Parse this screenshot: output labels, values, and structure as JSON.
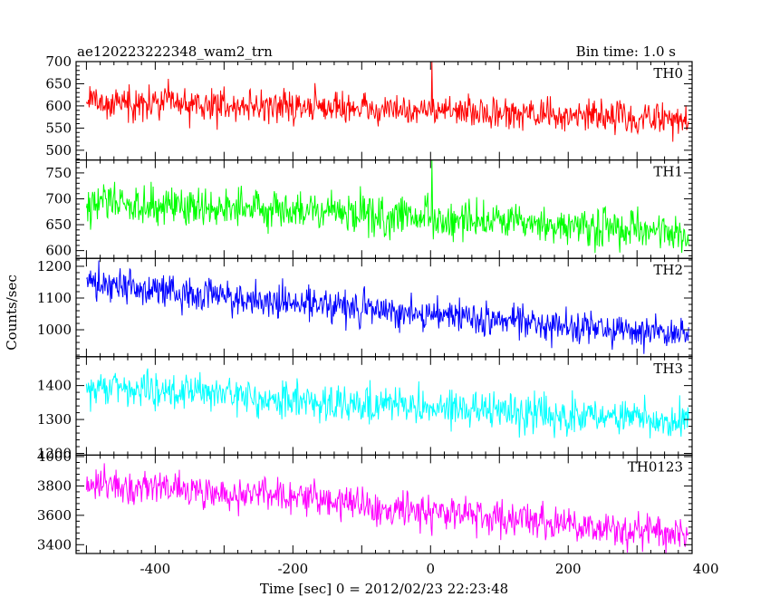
{
  "chart_data": {
    "type": "line",
    "title": "ae120223222348_wam2_trn",
    "subtitle": "Bin time: 1.0 s",
    "xlabel": "Time [sec] 0 = 2012/02/23 22:23:48",
    "ylabel": "Counts/sec",
    "xlim": [
      -515,
      380
    ],
    "xticks": [
      "-400",
      "-200",
      "0",
      "200",
      "400"
    ],
    "bin_time_s": 1.0,
    "grid": false,
    "panels": [
      {
        "name": "TH0",
        "color": "#ff0000",
        "ylim": [
          478,
          700
        ],
        "yticks": [
          "500",
          "550",
          "600",
          "650",
          "700"
        ],
        "x": [
          -500,
          -400,
          -300,
          -200,
          -100,
          0,
          100,
          200,
          300,
          375
        ],
        "y": [
          610,
          605,
          602,
          598,
          595,
          590,
          582,
          578,
          572,
          570
        ],
        "noise": 26,
        "spike": {
          "x": 2,
          "y": 700
        }
      },
      {
        "name": "TH1",
        "color": "#00ff00",
        "ylim": [
          585,
          775
        ],
        "yticks": [
          "600",
          "650",
          "700",
          "750"
        ],
        "x": [
          -500,
          -400,
          -300,
          -200,
          -100,
          0,
          100,
          200,
          300,
          375
        ],
        "y": [
          695,
          690,
          685,
          678,
          670,
          662,
          652,
          645,
          638,
          633
        ],
        "noise": 28,
        "spike": {
          "x": 2,
          "y": 775
        }
      },
      {
        "name": "TH2",
        "color": "#0000ff",
        "ylim": [
          915,
          1225
        ],
        "yticks": [
          "1000",
          "1100",
          "1200"
        ],
        "x": [
          -500,
          -400,
          -300,
          -200,
          -100,
          0,
          100,
          200,
          300,
          375
        ],
        "y": [
          1145,
          1125,
          1105,
          1085,
          1068,
          1050,
          1030,
          1010,
          995,
          985
        ],
        "noise": 38,
        "spike": null
      },
      {
        "name": "TH3",
        "color": "#00ffff",
        "ylim": [
          1195,
          1485
        ],
        "yticks": [
          "1200",
          "1300",
          "1400"
        ],
        "x": [
          -500,
          -400,
          -300,
          -200,
          -100,
          0,
          100,
          200,
          300,
          375
        ],
        "y": [
          1400,
          1385,
          1370,
          1357,
          1345,
          1335,
          1322,
          1310,
          1302,
          1298
        ],
        "noise": 38,
        "spike": null
      },
      {
        "name": "TH0123",
        "color": "#ff00ff",
        "ylim": [
          3340,
          4010
        ],
        "yticks": [
          "3400",
          "3600",
          "3800",
          "4000"
        ],
        "x": [
          -500,
          -400,
          -300,
          -200,
          -100,
          0,
          100,
          200,
          300,
          375
        ],
        "y": [
          3830,
          3790,
          3750,
          3720,
          3680,
          3630,
          3580,
          3530,
          3490,
          3470
        ],
        "noise": 85,
        "spike": null
      }
    ]
  }
}
